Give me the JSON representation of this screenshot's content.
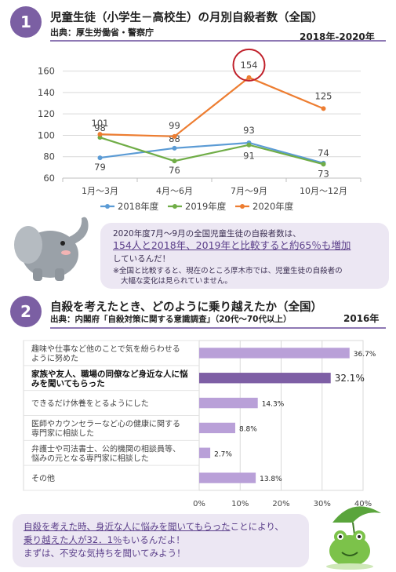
{
  "section1": {
    "number": "1",
    "title": "児童生徒（小学生－高校生）の月別自殺者数（全国）",
    "source": "出典：厚生労働省・警察庁",
    "years": "2018年-2020年"
  },
  "section2": {
    "number": "2",
    "title": "自殺を考えたとき、どのように乗り越えたか（全国）",
    "source": "出典：内閣府「自殺対策に関する意識調査」（20代～70代以上）",
    "year": "2016年"
  },
  "bubble1": {
    "line1": "2020年度7月～9月の全国児童生徒の自殺者数は、",
    "line2": "154人と2018年、2019年と比較すると約65％も増加",
    "line3": "しているんだ！",
    "note1": "※全国と比較すると、現在のところ厚木市では、児童生徒の自殺者の",
    "note2": "大幅な変化は見られていません。"
  },
  "bubble2": {
    "line1a": "自殺を考えた時、身近な人に悩みを聞いてもらった",
    "line1b": "ことにより、",
    "line2a": "乗り越えた人が32．1％",
    "line2b": "もいるんだよ！",
    "line3": "まずは、不安な気持ちを聞いてみよう！"
  },
  "colors": {
    "accent": "#7b5fa3",
    "series_2018": "#5b9bd5",
    "series_2019": "#70ad47",
    "series_2020": "#ed7d31",
    "bar": "#b9a0d8",
    "bar_highlight": "#7e5fa5",
    "highlight_circle": "#c0202a"
  },
  "chart_data": [
    {
      "type": "line",
      "categories": [
        "1月～3月",
        "4月～6月",
        "7月～9月",
        "10月～12月"
      ],
      "series": [
        {
          "name": "2018年度",
          "values": [
            79,
            88,
            93,
            74
          ]
        },
        {
          "name": "2019年度",
          "values": [
            98,
            76,
            91,
            73
          ]
        },
        {
          "name": "2020年度",
          "values": [
            101,
            99,
            154,
            125
          ]
        }
      ],
      "yticks": [
        "60",
        "80",
        "100",
        "120",
        "140",
        "160"
      ],
      "ylim": [
        60,
        170
      ],
      "grid": true,
      "legend": "bottom",
      "highlight_label": "154"
    },
    {
      "type": "bar",
      "orientation": "horizontal",
      "categories": [
        "趣味や仕事など他のことで気を紛らわせるように努めた",
        "家族や友人、職場の同僚など身近な人に悩みを聞いてもらった",
        "できるだけ休養をとるようにした",
        "医師やカウンセラーなど心の健康に関する専門家に相談した",
        "弁護士や司法書士、公的機関の相談員等、悩みの元となる専門家に相談した",
        "その他"
      ],
      "values": [
        36.7,
        32.1,
        14.3,
        8.8,
        2.7,
        13.8
      ],
      "value_labels": [
        "36.7%",
        "32.1%",
        "14.3%",
        "8.8%",
        "2.7%",
        "13.8%"
      ],
      "highlight_index": 1,
      "xticks": [
        "0%",
        "10%",
        "20%",
        "30%",
        "40%"
      ],
      "xlim": [
        0,
        40
      ],
      "grid": true
    }
  ]
}
